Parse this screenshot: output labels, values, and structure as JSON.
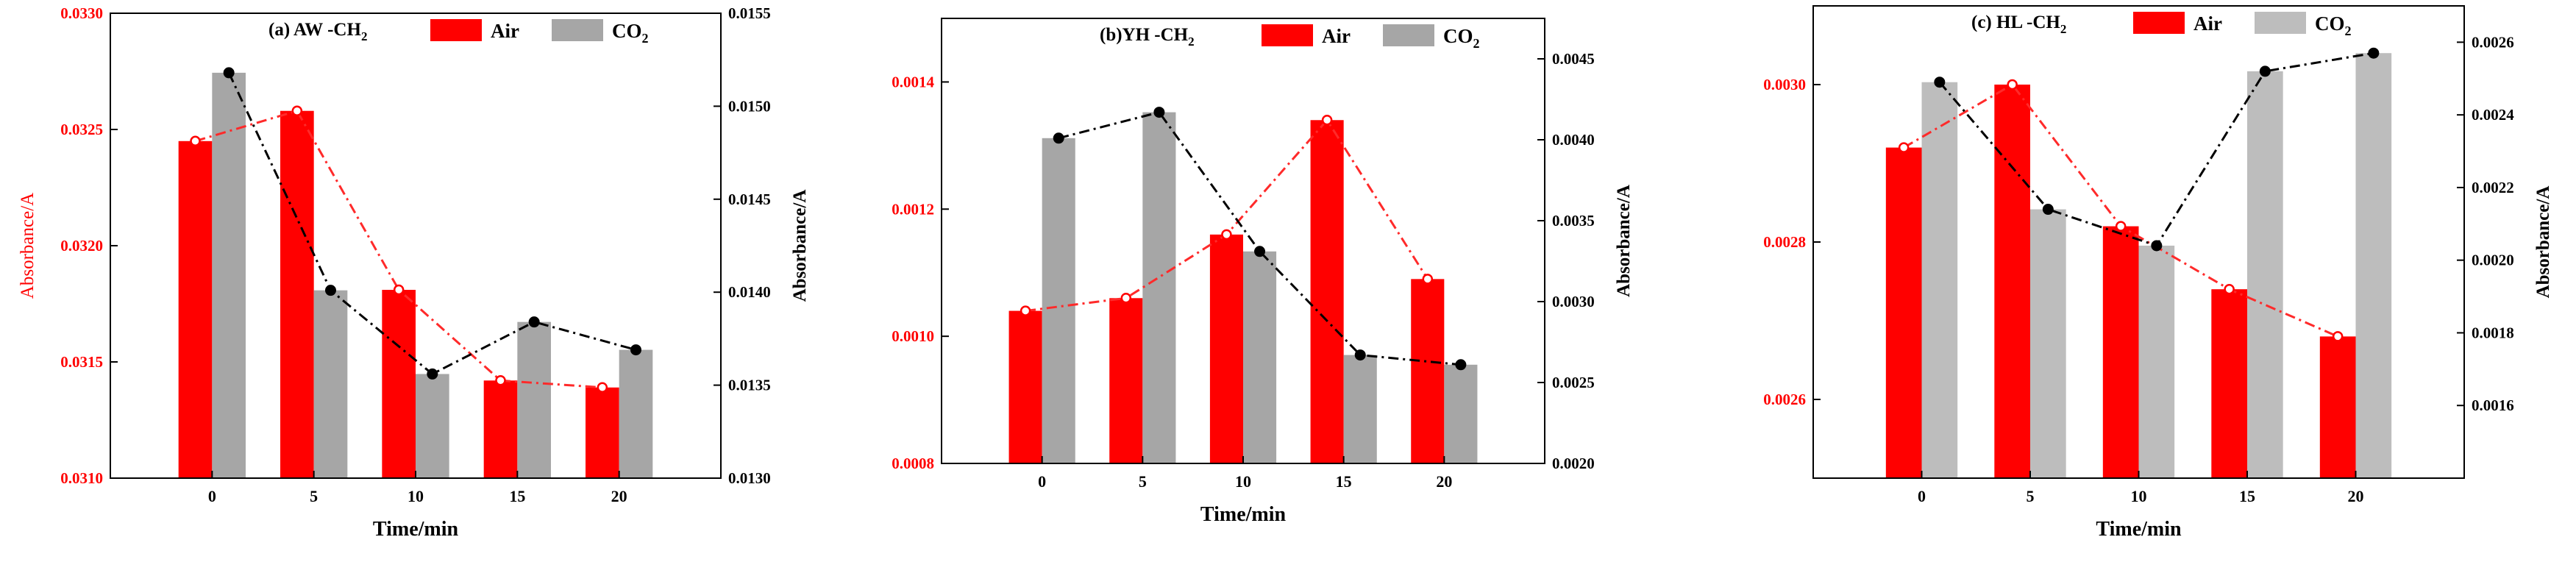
{
  "colors": {
    "air": "#ff0000",
    "co2_a": "#a6a6a6",
    "co2_b": "#a6a6a6",
    "co2_c": "#bdbdbd",
    "air_line": "#ff2a2a",
    "co2_line": "#000000"
  },
  "chart_data": [
    {
      "type": "bar",
      "title": "(a) AW  -CH",
      "title_sub": "2",
      "xlabel": "Time/min",
      "ylabel_left": "Absorbance/A",
      "ylabel_right": "Absorbance/A",
      "categories": [
        "0",
        "5",
        "10",
        "15",
        "20"
      ],
      "ylim_left": [
        0.031,
        0.033
      ],
      "ylim_right": [
        0.013,
        0.0155
      ],
      "yticks_left": [
        "0.0310",
        "0.0315",
        "0.0320",
        "0.0325",
        "0.0330"
      ],
      "yticks_right": [
        "0.0130",
        "0.0135",
        "0.0140",
        "0.0145",
        "0.0150",
        "0.0155"
      ],
      "legend": [
        {
          "label": "Air"
        },
        {
          "label": "CO",
          "sub": "2"
        }
      ],
      "series": [
        {
          "name": "Air",
          "axis": "left",
          "values": [
            0.03245,
            0.03258,
            0.03181,
            0.03142,
            0.03139
          ]
        },
        {
          "name": "CO2",
          "axis": "right",
          "values": [
            0.01518,
            0.01401,
            0.01356,
            0.01384,
            0.01369
          ]
        }
      ]
    },
    {
      "type": "bar",
      "title": "(b)YH  -CH",
      "title_sub": "2",
      "xlabel": "Time/min",
      "ylabel_left": "Absorbance/A",
      "ylabel_right": "Absorbance/A",
      "categories": [
        "0",
        "5",
        "10",
        "15",
        "20"
      ],
      "ylim_left": [
        0.0008,
        0.0015
      ],
      "ylim_right": [
        0.002,
        0.00475
      ],
      "yticks_left": [
        "0.0008",
        "0.0010",
        "0.0012",
        "0.0014"
      ],
      "yticks_right": [
        "0.0020",
        "0.0025",
        "0.0030",
        "0.0035",
        "0.0040",
        "0.0045"
      ],
      "legend": [
        {
          "label": "Air"
        },
        {
          "label": "CO",
          "sub": "2"
        }
      ],
      "series": [
        {
          "name": "Air",
          "axis": "left",
          "values": [
            0.00104,
            0.00106,
            0.00116,
            0.00134,
            0.00109
          ]
        },
        {
          "name": "CO2",
          "axis": "right",
          "values": [
            0.00401,
            0.00417,
            0.00331,
            0.00267,
            0.00261
          ]
        }
      ]
    },
    {
      "type": "bar",
      "title": "(c) HL  -CH",
      "title_sub": "2",
      "xlabel": "Time/min",
      "ylabel_left": "Absorbance/A",
      "ylabel_right": "Absorbance/A",
      "categories": [
        "0",
        "5",
        "10",
        "15",
        "20"
      ],
      "ylim_left": [
        0.0025,
        0.0031
      ],
      "ylim_right": [
        0.0014,
        0.0027
      ],
      "yticks_left": [
        "0.0026",
        "0.0028",
        "0.0030"
      ],
      "yticks_right": [
        "0.0016",
        "0.0018",
        "0.0020",
        "0.0022",
        "0.0024",
        "0.0026"
      ],
      "legend": [
        {
          "label": "Air"
        },
        {
          "label": "CO",
          "sub": "2"
        }
      ],
      "series": [
        {
          "name": "Air",
          "axis": "left",
          "values": [
            0.00292,
            0.003,
            0.00282,
            0.00274,
            0.00268
          ]
        },
        {
          "name": "CO2",
          "axis": "right",
          "values": [
            0.00249,
            0.00214,
            0.00204,
            0.00252,
            0.00257
          ]
        }
      ]
    }
  ]
}
